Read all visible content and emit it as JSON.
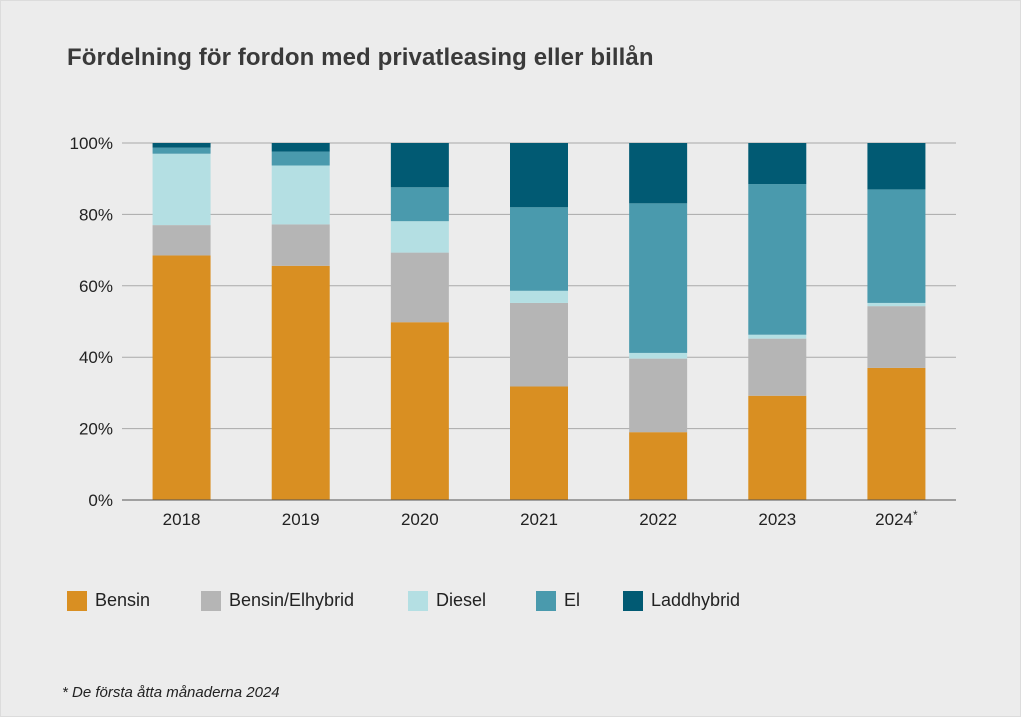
{
  "chart_data": {
    "type": "bar",
    "stacked": true,
    "title": "Fördelning för fordon med privatleasing eller billån",
    "categories": [
      "2018",
      "2019",
      "2020",
      "2021",
      "2022",
      "2023",
      "2024*"
    ],
    "series": [
      {
        "name": "Bensin",
        "color": "#d98f22",
        "values": [
          68.5,
          65.6,
          49.8,
          31.8,
          19.0,
          29.2,
          37.0
        ]
      },
      {
        "name": "Bensin/Elhybrid",
        "color": "#b5b5b5",
        "values": [
          8.5,
          11.6,
          19.5,
          23.4,
          20.6,
          16.0,
          17.3
        ]
      },
      {
        "name": "Diesel",
        "color": "#b4dfe3",
        "values": [
          20.0,
          16.5,
          8.8,
          3.4,
          1.6,
          1.1,
          0.9
        ]
      },
      {
        "name": "El",
        "color": "#4a9aad",
        "values": [
          1.7,
          3.9,
          9.5,
          23.4,
          41.9,
          42.2,
          31.8
        ]
      },
      {
        "name": "Laddhybrid",
        "color": "#015a73",
        "values": [
          1.3,
          2.4,
          12.4,
          18.0,
          16.9,
          11.5,
          13.0
        ]
      }
    ],
    "ylim": [
      0,
      100
    ],
    "yticks": [
      0,
      20,
      40,
      60,
      80,
      100
    ],
    "ytick_labels": [
      "0%",
      "20%",
      "40%",
      "60%",
      "80%",
      "100%"
    ],
    "xlabel": "",
    "ylabel": "",
    "grid": true,
    "legend_position": "bottom"
  },
  "footnote": "* De första åtta månaderna 2024"
}
